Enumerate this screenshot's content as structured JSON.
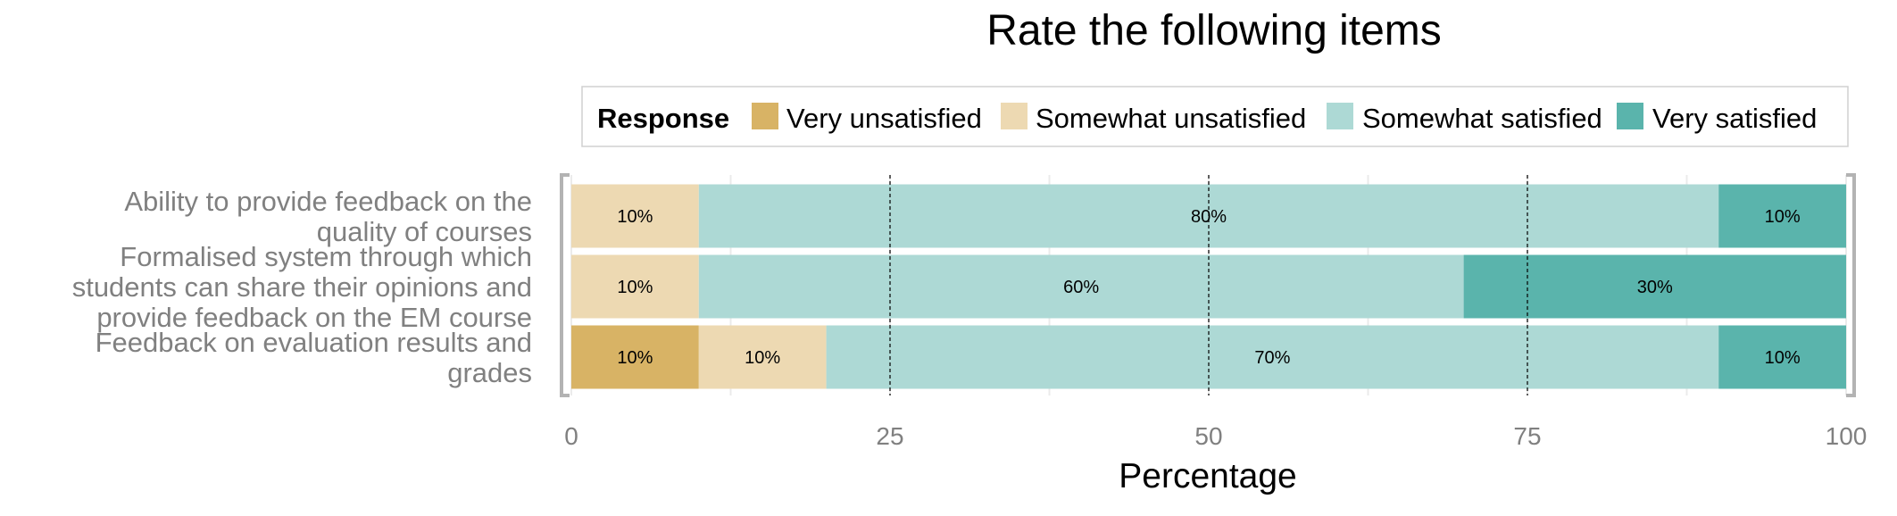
{
  "chart_data": {
    "type": "bar",
    "orientation": "horizontal",
    "stacked": true,
    "title": "Rate the following items",
    "xlabel": "Percentage",
    "ylabel": "",
    "xlim": [
      0,
      100
    ],
    "xticks": [
      0,
      25,
      50,
      75,
      100
    ],
    "legend": {
      "title": "Response",
      "placement": "top",
      "entries": [
        "Very unsatisfied",
        "Somewhat unsatisfied",
        "Somewhat satisfied",
        "Very satisfied"
      ]
    },
    "categories": [
      [
        "Ability to provide feedback on the",
        "quality of courses"
      ],
      [
        "Formalised system through which",
        "students can share their opinions and",
        "provide feedback on the EM course"
      ],
      [
        "Feedback on evaluation results and",
        "grades"
      ]
    ],
    "series": [
      {
        "name": "Very unsatisfied",
        "color": "#D8B365",
        "values": [
          0,
          0,
          10
        ],
        "labels": [
          "",
          "",
          "10%"
        ]
      },
      {
        "name": "Somewhat unsatisfied",
        "color": "#EDD9B2",
        "values": [
          10,
          10,
          10
        ],
        "labels": [
          "10%",
          "10%",
          "10%"
        ]
      },
      {
        "name": "Somewhat satisfied",
        "color": "#ADD9D5",
        "values": [
          80,
          60,
          70
        ],
        "labels": [
          "80%",
          "60%",
          "70%"
        ]
      },
      {
        "name": "Very satisfied",
        "color": "#5AB4AC",
        "values": [
          10,
          30,
          10
        ],
        "labels": [
          "10%",
          "30%",
          "10%"
        ]
      }
    ],
    "grid": true
  }
}
